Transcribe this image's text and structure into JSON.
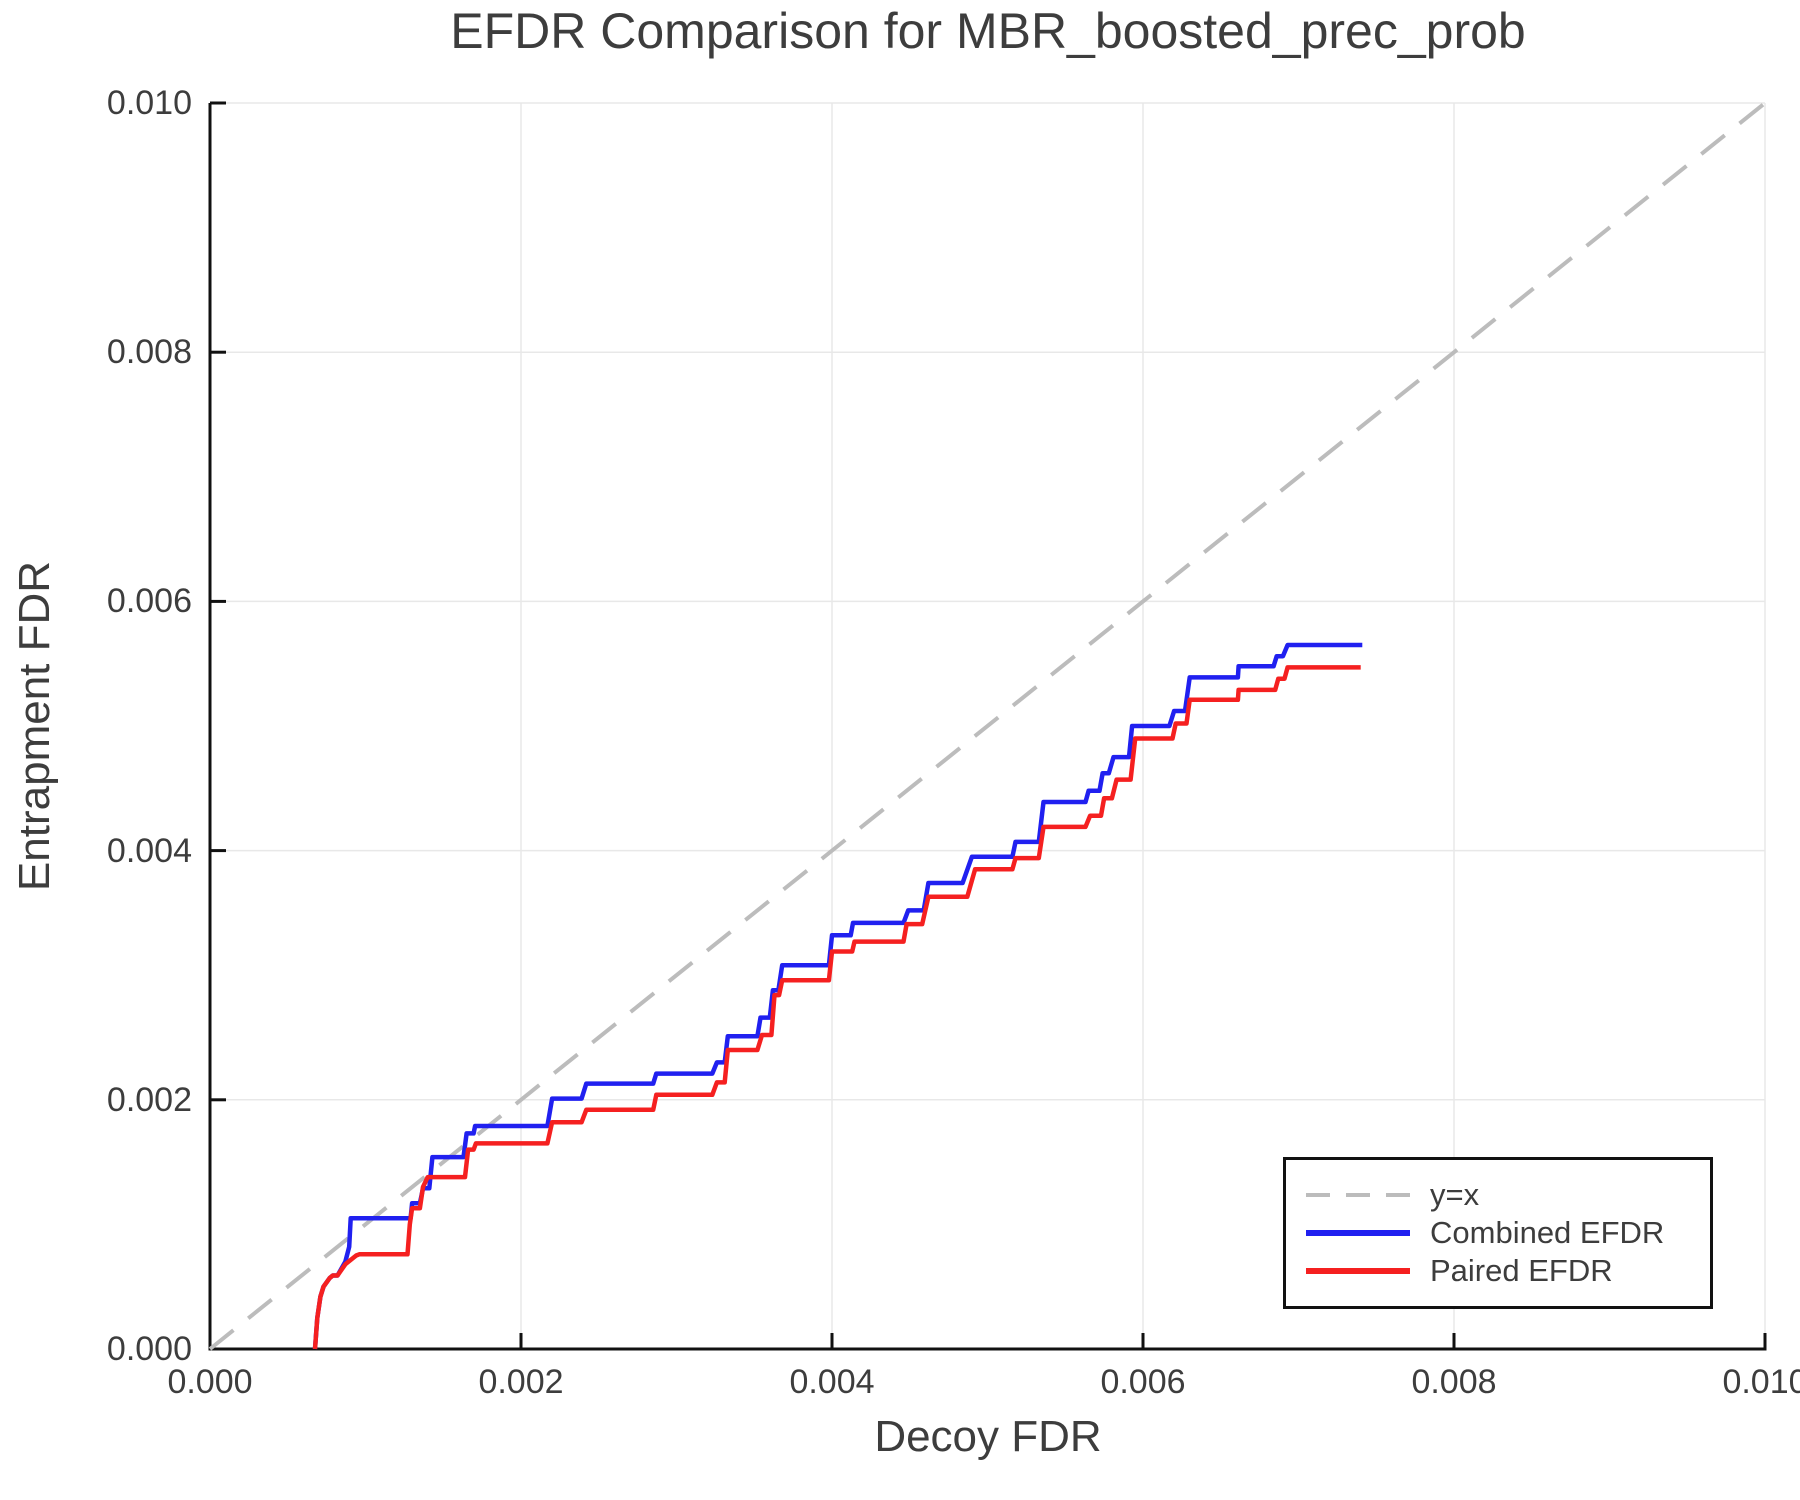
{
  "title": "EFDR Comparison for MBR_boosted_prec_prob",
  "colors": {
    "text": "#3d3d3d",
    "spine": "#111111",
    "grid": "#e8e8e8",
    "reference": "#bcbcbc",
    "combined": "#2020f0",
    "paired": "#f52020",
    "background": "#ffffff"
  },
  "chart_data": {
    "type": "line",
    "title": "EFDR Comparison for MBR_boosted_prec_prob",
    "xlabel": "Decoy FDR",
    "ylabel": "Entrapment FDR",
    "xlim": [
      0.0,
      0.01
    ],
    "ylim": [
      0.0,
      0.01
    ],
    "grid": true,
    "x_ticks": {
      "values": [
        0.0,
        0.002,
        0.004,
        0.006,
        0.008,
        0.01
      ],
      "labels": [
        "0.000",
        "0.002",
        "0.004",
        "0.006",
        "0.008",
        "0.010"
      ]
    },
    "y_ticks": {
      "values": [
        0.0,
        0.002,
        0.004,
        0.006,
        0.008,
        0.01
      ],
      "labels": [
        "0.000",
        "0.002",
        "0.004",
        "0.006",
        "0.008",
        "0.010"
      ]
    },
    "legend": {
      "position": "lower right",
      "entries": [
        "y=x",
        "Combined EFDR",
        "Paired EFDR"
      ]
    },
    "series": [
      {
        "name": "y=x",
        "color": "#bcbcbc",
        "style": "dashed",
        "points": [
          [
            0.0,
            0.0
          ],
          [
            0.01,
            0.01
          ]
        ]
      },
      {
        "name": "Combined EFDR",
        "color": "#2020f0",
        "style": "solid",
        "points": [
          [
            0.000675,
            0.0
          ],
          [
            0.00069,
            0.00025
          ],
          [
            0.00071,
            0.00042
          ],
          [
            0.00073,
            0.0005
          ],
          [
            0.00077,
            0.00057
          ],
          [
            0.00079,
            0.00059
          ],
          [
            0.00082,
            0.00059
          ],
          [
            0.00087,
            0.0007
          ],
          [
            0.000895,
            0.00082
          ],
          [
            0.000905,
            0.00105
          ],
          [
            0.00129,
            0.00105
          ],
          [
            0.0013,
            0.00117
          ],
          [
            0.00135,
            0.00117
          ],
          [
            0.00137,
            0.00129
          ],
          [
            0.00141,
            0.00129
          ],
          [
            0.00143,
            0.00154
          ],
          [
            0.00163,
            0.00154
          ],
          [
            0.00165,
            0.00173
          ],
          [
            0.001695,
            0.00173
          ],
          [
            0.001705,
            0.00179
          ],
          [
            0.00217,
            0.00179
          ],
          [
            0.0022,
            0.00201
          ],
          [
            0.00239,
            0.00201
          ],
          [
            0.00242,
            0.00213
          ],
          [
            0.00285,
            0.00213
          ],
          [
            0.00287,
            0.00221
          ],
          [
            0.00323,
            0.00221
          ],
          [
            0.00326,
            0.0023
          ],
          [
            0.00331,
            0.0023
          ],
          [
            0.00333,
            0.00251
          ],
          [
            0.00352,
            0.00251
          ],
          [
            0.00354,
            0.00266
          ],
          [
            0.0036,
            0.00266
          ],
          [
            0.00362,
            0.00288
          ],
          [
            0.003655,
            0.00288
          ],
          [
            0.00368,
            0.00308
          ],
          [
            0.00398,
            0.00308
          ],
          [
            0.004,
            0.00332
          ],
          [
            0.00412,
            0.00332
          ],
          [
            0.004135,
            0.00342
          ],
          [
            0.00446,
            0.00342
          ],
          [
            0.00449,
            0.00352
          ],
          [
            0.00459,
            0.00352
          ],
          [
            0.00462,
            0.00374
          ],
          [
            0.00484,
            0.00374
          ],
          [
            0.0049,
            0.00395
          ],
          [
            0.00516,
            0.00395
          ],
          [
            0.00518,
            0.00407
          ],
          [
            0.00533,
            0.00407
          ],
          [
            0.00536,
            0.00439
          ],
          [
            0.00563,
            0.00439
          ],
          [
            0.00565,
            0.00448
          ],
          [
            0.00572,
            0.00448
          ],
          [
            0.00574,
            0.00462
          ],
          [
            0.00578,
            0.00462
          ],
          [
            0.00581,
            0.00475
          ],
          [
            0.00591,
            0.00475
          ],
          [
            0.00593,
            0.005
          ],
          [
            0.00617,
            0.005
          ],
          [
            0.0062,
            0.00512
          ],
          [
            0.00627,
            0.00512
          ],
          [
            0.0063,
            0.00539
          ],
          [
            0.00661,
            0.00539
          ],
          [
            0.006615,
            0.00548
          ],
          [
            0.00684,
            0.00548
          ],
          [
            0.00686,
            0.00556
          ],
          [
            0.0069,
            0.00556
          ],
          [
            0.00693,
            0.00565
          ],
          [
            0.00741,
            0.00565
          ]
        ]
      },
      {
        "name": "Paired EFDR",
        "color": "#f52020",
        "style": "solid",
        "points": [
          [
            0.000675,
            0.0
          ],
          [
            0.00069,
            0.00025
          ],
          [
            0.00071,
            0.00042
          ],
          [
            0.00073,
            0.0005
          ],
          [
            0.00077,
            0.00057
          ],
          [
            0.00079,
            0.00059
          ],
          [
            0.00082,
            0.00059
          ],
          [
            0.00087,
            0.00068
          ],
          [
            0.00094,
            0.00075
          ],
          [
            0.00096,
            0.00076
          ],
          [
            0.00127,
            0.00076
          ],
          [
            0.001285,
            0.001
          ],
          [
            0.0013,
            0.00113
          ],
          [
            0.00135,
            0.00113
          ],
          [
            0.00137,
            0.0013
          ],
          [
            0.0014,
            0.00138
          ],
          [
            0.00164,
            0.00138
          ],
          [
            0.00166,
            0.0016
          ],
          [
            0.001695,
            0.0016
          ],
          [
            0.00171,
            0.00165
          ],
          [
            0.00217,
            0.00165
          ],
          [
            0.0022,
            0.00182
          ],
          [
            0.00239,
            0.00182
          ],
          [
            0.00242,
            0.00192
          ],
          [
            0.00285,
            0.00192
          ],
          [
            0.00287,
            0.00204
          ],
          [
            0.00323,
            0.00204
          ],
          [
            0.00326,
            0.00214
          ],
          [
            0.00331,
            0.00214
          ],
          [
            0.00333,
            0.0024
          ],
          [
            0.00352,
            0.0024
          ],
          [
            0.00355,
            0.00252
          ],
          [
            0.00361,
            0.00252
          ],
          [
            0.00363,
            0.00284
          ],
          [
            0.00366,
            0.00284
          ],
          [
            0.00368,
            0.00296
          ],
          [
            0.00398,
            0.00296
          ],
          [
            0.004,
            0.00319
          ],
          [
            0.00413,
            0.00319
          ],
          [
            0.004145,
            0.00327
          ],
          [
            0.00446,
            0.00327
          ],
          [
            0.00448,
            0.00341
          ],
          [
            0.00458,
            0.00341
          ],
          [
            0.00462,
            0.00363
          ],
          [
            0.00487,
            0.00363
          ],
          [
            0.00492,
            0.00385
          ],
          [
            0.00516,
            0.00385
          ],
          [
            0.00518,
            0.00394
          ],
          [
            0.00533,
            0.00394
          ],
          [
            0.00536,
            0.00419
          ],
          [
            0.00563,
            0.00419
          ],
          [
            0.00566,
            0.00428
          ],
          [
            0.00573,
            0.00428
          ],
          [
            0.00575,
            0.00442
          ],
          [
            0.0058,
            0.00442
          ],
          [
            0.00583,
            0.00457
          ],
          [
            0.00592,
            0.00457
          ],
          [
            0.00595,
            0.0049
          ],
          [
            0.00619,
            0.0049
          ],
          [
            0.00621,
            0.00502
          ],
          [
            0.00628,
            0.00502
          ],
          [
            0.0063,
            0.00521
          ],
          [
            0.00661,
            0.00521
          ],
          [
            0.006615,
            0.00529
          ],
          [
            0.00685,
            0.00529
          ],
          [
            0.00687,
            0.00538
          ],
          [
            0.00691,
            0.00538
          ],
          [
            0.00693,
            0.00547
          ],
          [
            0.0074,
            0.00547
          ]
        ]
      }
    ]
  }
}
